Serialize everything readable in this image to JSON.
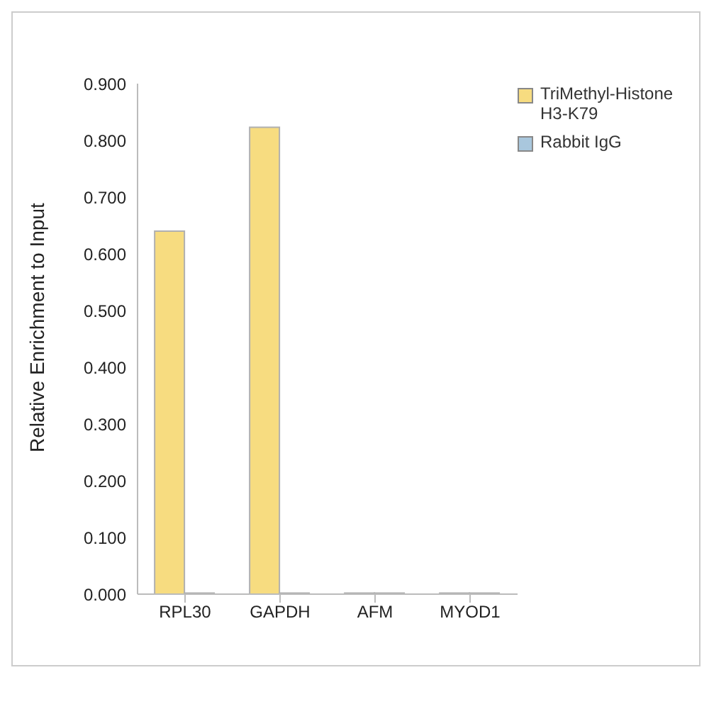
{
  "chart_data": {
    "type": "bar",
    "ylabel": "Relative Enrichment to Input",
    "categories": [
      "RPL30",
      "GAPDH",
      "AFM",
      "MYOD1"
    ],
    "series": [
      {
        "name": "TriMethyl-Histone H3-K79",
        "color": "#f7dc80",
        "values": [
          0.64,
          0.823,
          0.002,
          0.002
        ]
      },
      {
        "name": "Rabbit IgG",
        "color": "#a9c7dd",
        "values": [
          0.002,
          0.002,
          0.002,
          0.002
        ]
      }
    ],
    "ylim": [
      0,
      0.9
    ],
    "yticks": [
      {
        "value": 0,
        "label": "0.000"
      },
      {
        "value": 0.1,
        "label": "0.100"
      },
      {
        "value": 0.2,
        "label": "0.200"
      },
      {
        "value": 0.3,
        "label": "0.300"
      },
      {
        "value": 0.4,
        "label": "0.400"
      },
      {
        "value": 0.5,
        "label": "0.500"
      },
      {
        "value": 0.6,
        "label": "0.600"
      },
      {
        "value": 0.7,
        "label": "0.700"
      },
      {
        "value": 0.8,
        "label": "0.800"
      },
      {
        "value": 0.9,
        "label": "0.900"
      }
    ],
    "grid": false,
    "legend": "top right"
  }
}
